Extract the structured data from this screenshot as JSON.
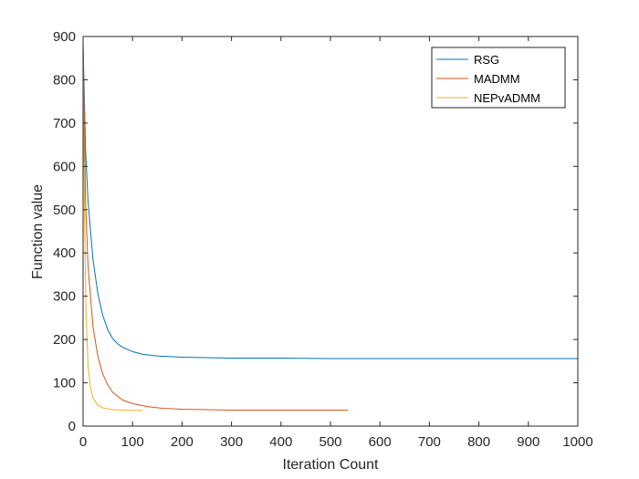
{
  "chart_data": {
    "type": "line",
    "title": "",
    "xlabel": "Iteration Count",
    "ylabel": "Function value",
    "xlim": [
      0,
      1000
    ],
    "ylim": [
      0,
      900
    ],
    "xticks": [
      0,
      100,
      200,
      300,
      400,
      500,
      600,
      700,
      800,
      900,
      1000
    ],
    "yticks": [
      0,
      100,
      200,
      300,
      400,
      500,
      600,
      700,
      800,
      900
    ],
    "grid": false,
    "legend_position": "top-right",
    "series": [
      {
        "name": "RSG",
        "color": "#0072BD",
        "x": [
          0,
          5,
          10,
          20,
          30,
          40,
          50,
          60,
          70,
          80,
          100,
          120,
          150,
          200,
          250,
          300,
          400,
          500,
          600,
          700,
          800,
          900,
          1000
        ],
        "y": [
          885,
          640,
          520,
          385,
          305,
          255,
          222,
          202,
          190,
          182,
          172,
          166,
          162,
          159,
          158,
          157,
          157,
          156,
          156,
          156,
          156,
          156,
          156
        ]
      },
      {
        "name": "MADMM",
        "color": "#D95319",
        "x": [
          0,
          5,
          10,
          20,
          30,
          40,
          50,
          60,
          80,
          100,
          130,
          160,
          200,
          250,
          300,
          400,
          500,
          535
        ],
        "y": [
          885,
          520,
          370,
          230,
          160,
          120,
          95,
          78,
          60,
          52,
          45,
          41,
          39,
          38,
          37,
          37,
          37,
          37
        ]
      },
      {
        "name": "NEPvADMM",
        "color": "#EDB120",
        "x": [
          0,
          3,
          6,
          10,
          15,
          20,
          30,
          40,
          60,
          80,
          100,
          120
        ],
        "y": [
          885,
          480,
          260,
          140,
          90,
          65,
          48,
          42,
          38,
          37,
          36,
          36
        ]
      }
    ]
  }
}
